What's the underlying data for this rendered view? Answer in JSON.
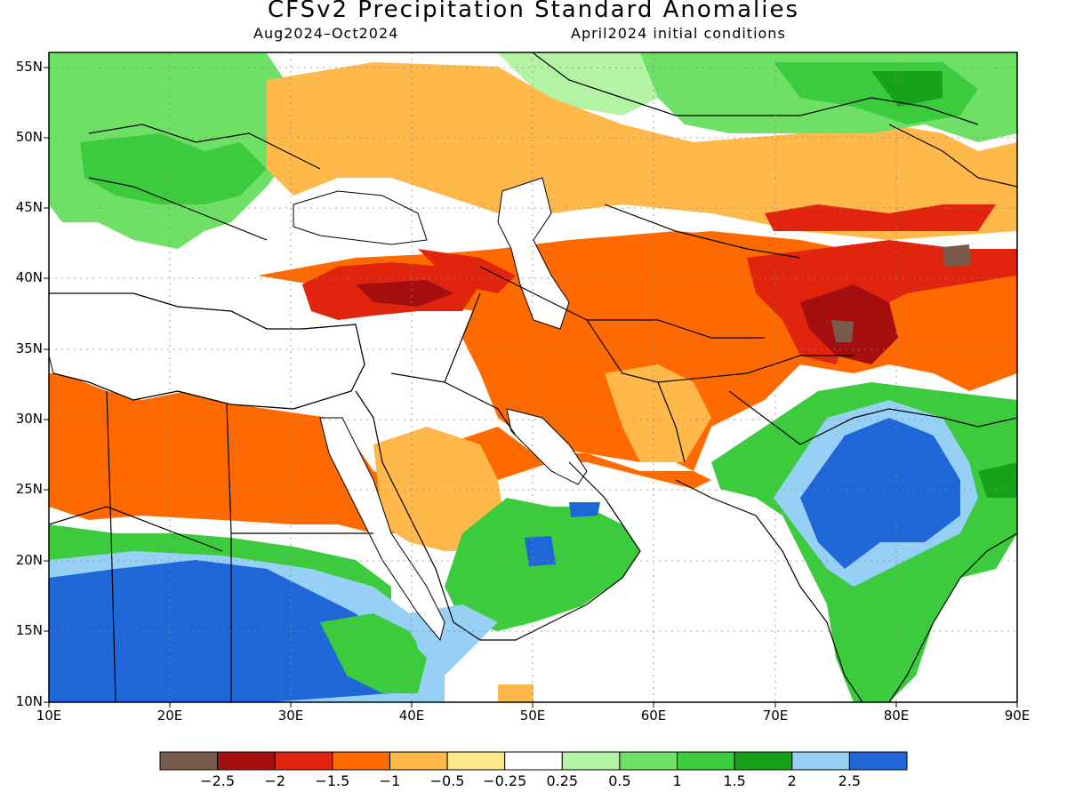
{
  "title": "CFSv2 Precipitation Standard Anomalies",
  "period": "Aug2024–Oct2024",
  "initial_conditions": "April2024 initial conditions",
  "lat_labels": [
    "55N",
    "50N",
    "45N",
    "40N",
    "35N",
    "30N",
    "25N",
    "20N",
    "15N",
    "10N"
  ],
  "lon_labels": [
    "10E",
    "20E",
    "30E",
    "40E",
    "50E",
    "60E",
    "70E",
    "80E",
    "90E"
  ],
  "colorbar": {
    "colors": [
      "#7a5a4a",
      "#a50f0f",
      "#e0240e",
      "#ff6a00",
      "#ffb84a",
      "#ffe88a",
      "#ffffff",
      "#b4f3a4",
      "#6fe066",
      "#3ccb3c",
      "#16a31a",
      "#96d0f5",
      "#1f66d8"
    ],
    "labels": [
      "−2.5",
      "−2",
      "−1.5",
      "−1",
      "−0.5",
      "−0.25",
      "0.25",
      "0.5",
      "1",
      "1.5",
      "2",
      "2.5"
    ]
  },
  "colors": {
    "ocean": "#ffffff",
    "grid": "#888888"
  }
}
